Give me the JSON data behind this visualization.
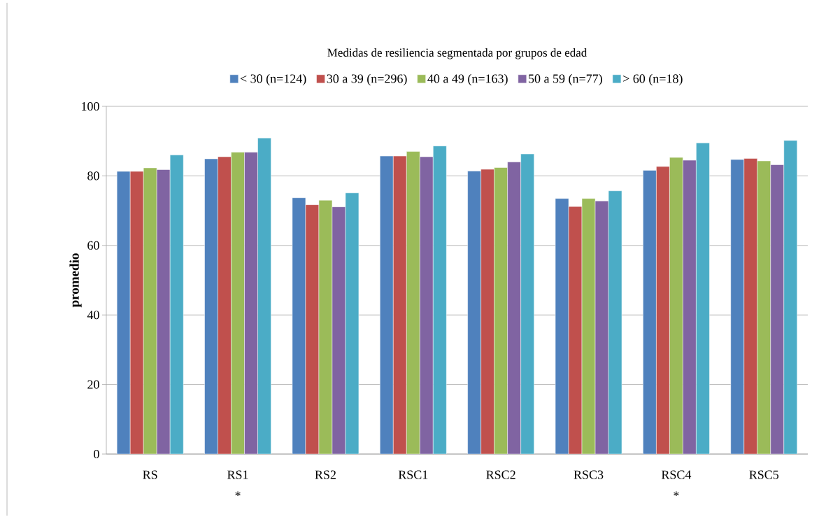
{
  "chart_data": {
    "type": "bar",
    "title": "Medidas de resiliencia segmentada por grupos de edad",
    "ylabel": "promedio",
    "categories": [
      "RS",
      "RS1",
      "RS2",
      "RSC1",
      "RSC2",
      "RSC3",
      "RSC4",
      "RSC5"
    ],
    "series": [
      {
        "name": "< 30 (n=124)",
        "color": "#4f81bd",
        "values": [
          81.3,
          84.9,
          73.7,
          85.7,
          81.4,
          73.5,
          81.6,
          84.7
        ]
      },
      {
        "name": "30 a 39 (n=296)",
        "color": "#c0504d",
        "values": [
          81.3,
          85.5,
          71.7,
          85.7,
          81.9,
          71.2,
          82.7,
          85.0
        ]
      },
      {
        "name": "40 a 49 (n=163)",
        "color": "#9bbb59",
        "values": [
          82.3,
          86.8,
          73.0,
          87.0,
          82.4,
          73.5,
          85.3,
          84.3
        ]
      },
      {
        "name": "50 a 59 (n=77)",
        "color": "#8064a2",
        "values": [
          81.8,
          86.8,
          71.1,
          85.5,
          84.0,
          72.8,
          84.5,
          83.2
        ]
      },
      {
        "name": "> 60 (n=18)",
        "color": "#4bacc6",
        "values": [
          86.0,
          90.9,
          75.1,
          88.6,
          86.3,
          75.7,
          89.5,
          90.2
        ]
      }
    ],
    "ylim": [
      0,
      100
    ],
    "yticks": [
      0,
      20,
      40,
      60,
      80,
      100
    ],
    "grid": "y",
    "legend": "top",
    "annotations": [
      "*",
      "*"
    ]
  }
}
